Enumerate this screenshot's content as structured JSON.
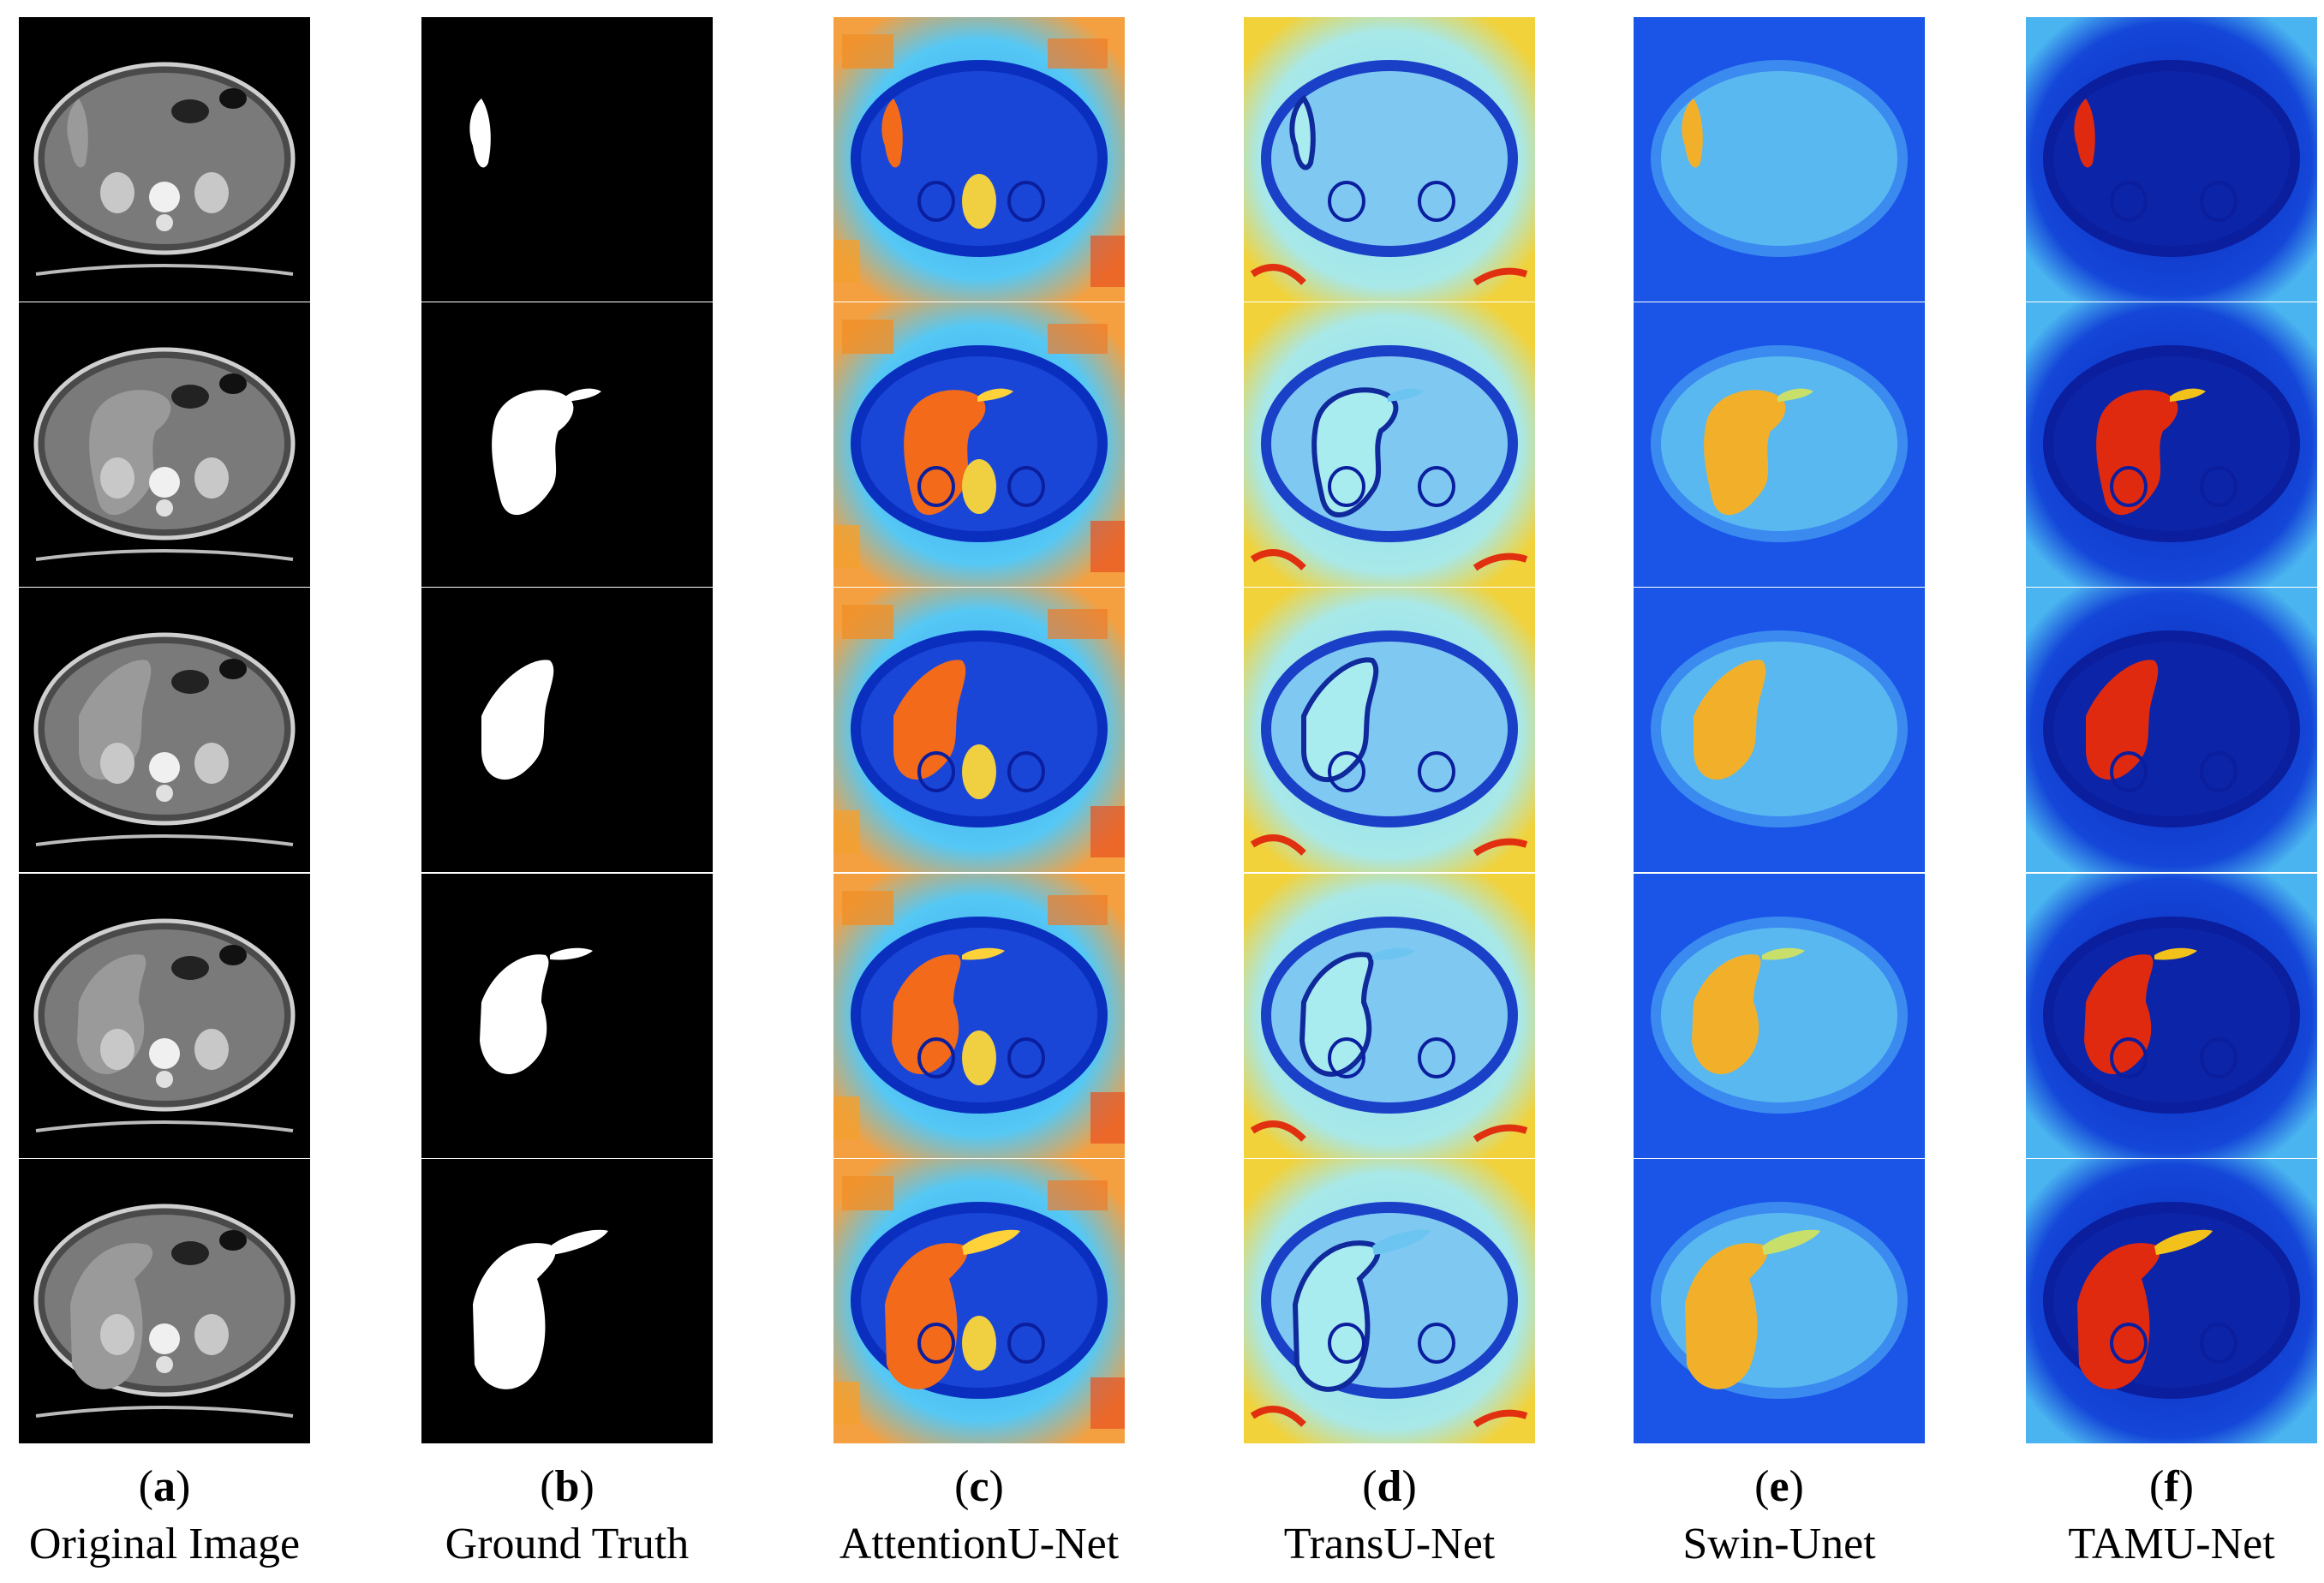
{
  "figure": {
    "rows": 5,
    "columns": [
      {
        "letter": "a",
        "caption": "Original Image",
        "style": "ct"
      },
      {
        "letter": "b",
        "caption": "Ground Truth",
        "style": "mask"
      },
      {
        "letter": "c",
        "caption": "AttentionU-Net",
        "style": "heat-attn"
      },
      {
        "letter": "d",
        "caption": "TransU-Net",
        "style": "heat-trans"
      },
      {
        "letter": "e",
        "caption": "Swin-Unet",
        "style": "heat-swin"
      },
      {
        "letter": "f",
        "caption": "TAMU-Net",
        "style": "heat-tamu"
      }
    ]
  }
}
